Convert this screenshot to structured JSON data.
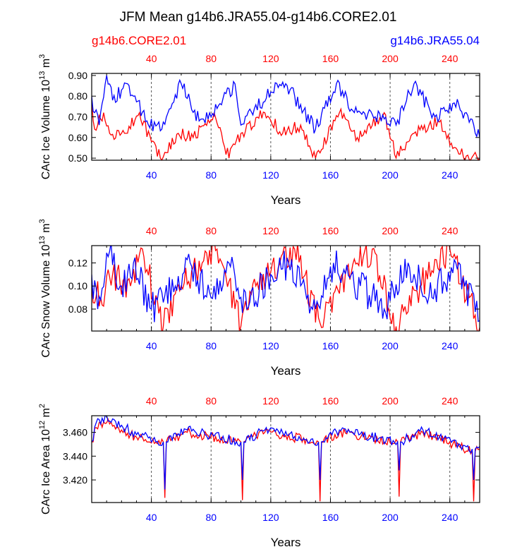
{
  "title": "JFM Mean g14b6.JRA55.04-g14b6.CORE2.01",
  "legend": {
    "left_label": "g14b6.CORE2.01",
    "left_color": "#ff0000",
    "right_label": "g14b6.JRA55.04",
    "right_color": "#0000ff"
  },
  "chart_data": [
    {
      "type": "line",
      "id": "ice-volume",
      "ylabel": "CArc Ice Volume",
      "yunit_base": "10",
      "yunit_exp": "13",
      "yunit_tail": "m",
      "yunit_tail_exp": "3",
      "xlabel": "Years",
      "xlim": [
        0,
        260
      ],
      "ylim": [
        0.49,
        0.91
      ],
      "yticks": [
        0.5,
        0.6,
        0.7,
        0.8,
        0.9
      ],
      "ytick_labels": [
        "0.50",
        "0.60",
        "0.70",
        "0.80",
        "0.90"
      ],
      "xticks": [
        40,
        80,
        120,
        160,
        200,
        240
      ],
      "xtick_labels": [
        "40",
        "80",
        "120",
        "160",
        "200",
        "240"
      ],
      "series": [
        {
          "name": "g14b6.JRA55.04",
          "color": "#0000ff",
          "period": 52,
          "amp": 0.075,
          "base": 0.72,
          "noise": 0.035,
          "anchors": [
            [
              0,
              0.8
            ],
            [
              2,
              0.72
            ],
            [
              5,
              0.66
            ],
            [
              10,
              0.9
            ],
            [
              14,
              0.78
            ],
            [
              24,
              0.86
            ],
            [
              38,
              0.66
            ],
            [
              47,
              0.64
            ],
            [
              60,
              0.86
            ],
            [
              72,
              0.68
            ],
            [
              84,
              0.74
            ],
            [
              96,
              0.86
            ],
            [
              100,
              0.66
            ],
            [
              120,
              0.82
            ],
            [
              130,
              0.86
            ],
            [
              150,
              0.64
            ],
            [
              164,
              0.86
            ],
            [
              176,
              0.72
            ],
            [
              190,
              0.7
            ],
            [
              204,
              0.66
            ],
            [
              216,
              0.86
            ],
            [
              230,
              0.7
            ],
            [
              246,
              0.76
            ],
            [
              260,
              0.6
            ]
          ]
        },
        {
          "name": "g14b6.CORE2.01",
          "color": "#ff0000",
          "period": 52,
          "amp": 0.075,
          "base": 0.6,
          "noise": 0.03,
          "anchors": [
            [
              0,
              0.78
            ],
            [
              2,
              0.64
            ],
            [
              8,
              0.72
            ],
            [
              12,
              0.62
            ],
            [
              22,
              0.62
            ],
            [
              32,
              0.72
            ],
            [
              40,
              0.58
            ],
            [
              46,
              0.5
            ],
            [
              58,
              0.62
            ],
            [
              68,
              0.6
            ],
            [
              82,
              0.72
            ],
            [
              92,
              0.5
            ],
            [
              100,
              0.62
            ],
            [
              116,
              0.72
            ],
            [
              128,
              0.62
            ],
            [
              140,
              0.66
            ],
            [
              150,
              0.5
            ],
            [
              166,
              0.72
            ],
            [
              178,
              0.6
            ],
            [
              196,
              0.72
            ],
            [
              204,
              0.5
            ],
            [
              216,
              0.62
            ],
            [
              232,
              0.68
            ],
            [
              246,
              0.52
            ],
            [
              260,
              0.5
            ]
          ]
        }
      ]
    },
    {
      "type": "line",
      "id": "snow-volume",
      "ylabel": "CArc Snow Volume",
      "yunit_base": "10",
      "yunit_exp": "13",
      "yunit_tail": "m",
      "yunit_tail_exp": "3",
      "xlabel": "Years",
      "xlim": [
        0,
        260
      ],
      "ylim": [
        0.061,
        0.135
      ],
      "yticks": [
        0.08,
        0.1,
        0.12
      ],
      "ytick_labels": [
        "0.08",
        "0.10",
        "0.12"
      ],
      "xticks": [
        40,
        80,
        120,
        160,
        200,
        240
      ],
      "xtick_labels": [
        "40",
        "80",
        "120",
        "160",
        "200",
        "240"
      ],
      "series": [
        {
          "name": "g14b6.JRA55.04",
          "color": "#0000ff",
          "period": 52,
          "amp": 0.008,
          "base": 0.094,
          "noise": 0.014,
          "anchors": [
            [
              0,
              0.11
            ],
            [
              4,
              0.08
            ],
            [
              12,
              0.13
            ],
            [
              20,
              0.1
            ],
            [
              28,
              0.12
            ],
            [
              40,
              0.08
            ],
            [
              56,
              0.1
            ],
            [
              66,
              0.12
            ],
            [
              80,
              0.09
            ],
            [
              92,
              0.12
            ],
            [
              104,
              0.08
            ],
            [
              120,
              0.11
            ],
            [
              132,
              0.12
            ],
            [
              150,
              0.08
            ],
            [
              162,
              0.12
            ],
            [
              180,
              0.1
            ],
            [
              196,
              0.08
            ],
            [
              212,
              0.12
            ],
            [
              228,
              0.09
            ],
            [
              244,
              0.12
            ],
            [
              260,
              0.07
            ]
          ]
        },
        {
          "name": "g14b6.CORE2.01",
          "color": "#ff0000",
          "period": 52,
          "amp": 0.008,
          "base": 0.092,
          "noise": 0.013,
          "anchors": [
            [
              0,
              0.1
            ],
            [
              6,
              0.09
            ],
            [
              14,
              0.11
            ],
            [
              26,
              0.1
            ],
            [
              33,
              0.133
            ],
            [
              48,
              0.065
            ],
            [
              60,
              0.1
            ],
            [
              84,
              0.132
            ],
            [
              100,
              0.065
            ],
            [
              110,
              0.1
            ],
            [
              136,
              0.132
            ],
            [
              154,
              0.064
            ],
            [
              164,
              0.1
            ],
            [
              188,
              0.132
            ],
            [
              204,
              0.065
            ],
            [
              220,
              0.1
            ],
            [
              240,
              0.132
            ],
            [
              260,
              0.064
            ]
          ]
        }
      ]
    },
    {
      "type": "line",
      "id": "ice-area",
      "ylabel": "CArc Ice Area",
      "yunit_base": "10",
      "yunit_exp": "12",
      "yunit_tail": "m",
      "yunit_tail_exp": "2",
      "xlabel": "Years",
      "xlim": [
        0,
        260
      ],
      "ylim": [
        3.401,
        3.474
      ],
      "yticks": [
        3.42,
        3.44,
        3.46
      ],
      "ytick_labels": [
        "3.420",
        "3.440",
        "3.460"
      ],
      "xticks": [
        40,
        80,
        120,
        160,
        200,
        240
      ],
      "xtick_labels": [
        "40",
        "80",
        "120",
        "160",
        "200",
        "240"
      ],
      "series": [
        {
          "name": "g14b6.JRA55.04",
          "color": "#0000ff",
          "period": 52,
          "amp": 0.004,
          "base": 3.452,
          "noise": 0.004,
          "anchors": [
            [
              0,
              3.452
            ],
            [
              3,
              3.468
            ],
            [
              10,
              3.474
            ],
            [
              20,
              3.466
            ],
            [
              30,
              3.458
            ],
            [
              48,
              3.452
            ],
            [
              49,
              3.412
            ],
            [
              50,
              3.452
            ],
            [
              64,
              3.462
            ],
            [
              100,
              3.452
            ],
            [
              101,
              3.42
            ],
            [
              102,
              3.452
            ],
            [
              116,
              3.462
            ],
            [
              152,
              3.452
            ],
            [
              153,
              3.42
            ],
            [
              154,
              3.452
            ],
            [
              166,
              3.462
            ],
            [
              205,
              3.452
            ],
            [
              206,
              3.428
            ],
            [
              207,
              3.452
            ],
            [
              222,
              3.462
            ],
            [
              255,
              3.446
            ],
            [
              256,
              3.42
            ],
            [
              257,
              3.446
            ],
            [
              260,
              3.448
            ]
          ]
        },
        {
          "name": "g14b6.CORE2.01",
          "color": "#ff0000",
          "period": 52,
          "amp": 0.004,
          "base": 3.45,
          "noise": 0.004,
          "anchors": [
            [
              0,
              3.452
            ],
            [
              3,
              3.464
            ],
            [
              10,
              3.468
            ],
            [
              20,
              3.462
            ],
            [
              30,
              3.456
            ],
            [
              48,
              3.452
            ],
            [
              49,
              3.405
            ],
            [
              50,
              3.452
            ],
            [
              64,
              3.46
            ],
            [
              100,
              3.452
            ],
            [
              101,
              3.403
            ],
            [
              102,
              3.452
            ],
            [
              116,
              3.46
            ],
            [
              152,
              3.452
            ],
            [
              153,
              3.402
            ],
            [
              154,
              3.452
            ],
            [
              166,
              3.46
            ],
            [
              205,
              3.452
            ],
            [
              206,
              3.406
            ],
            [
              207,
              3.452
            ],
            [
              222,
              3.46
            ],
            [
              255,
              3.444
            ],
            [
              256,
              3.402
            ],
            [
              257,
              3.444
            ],
            [
              260,
              3.446
            ]
          ]
        }
      ]
    }
  ]
}
